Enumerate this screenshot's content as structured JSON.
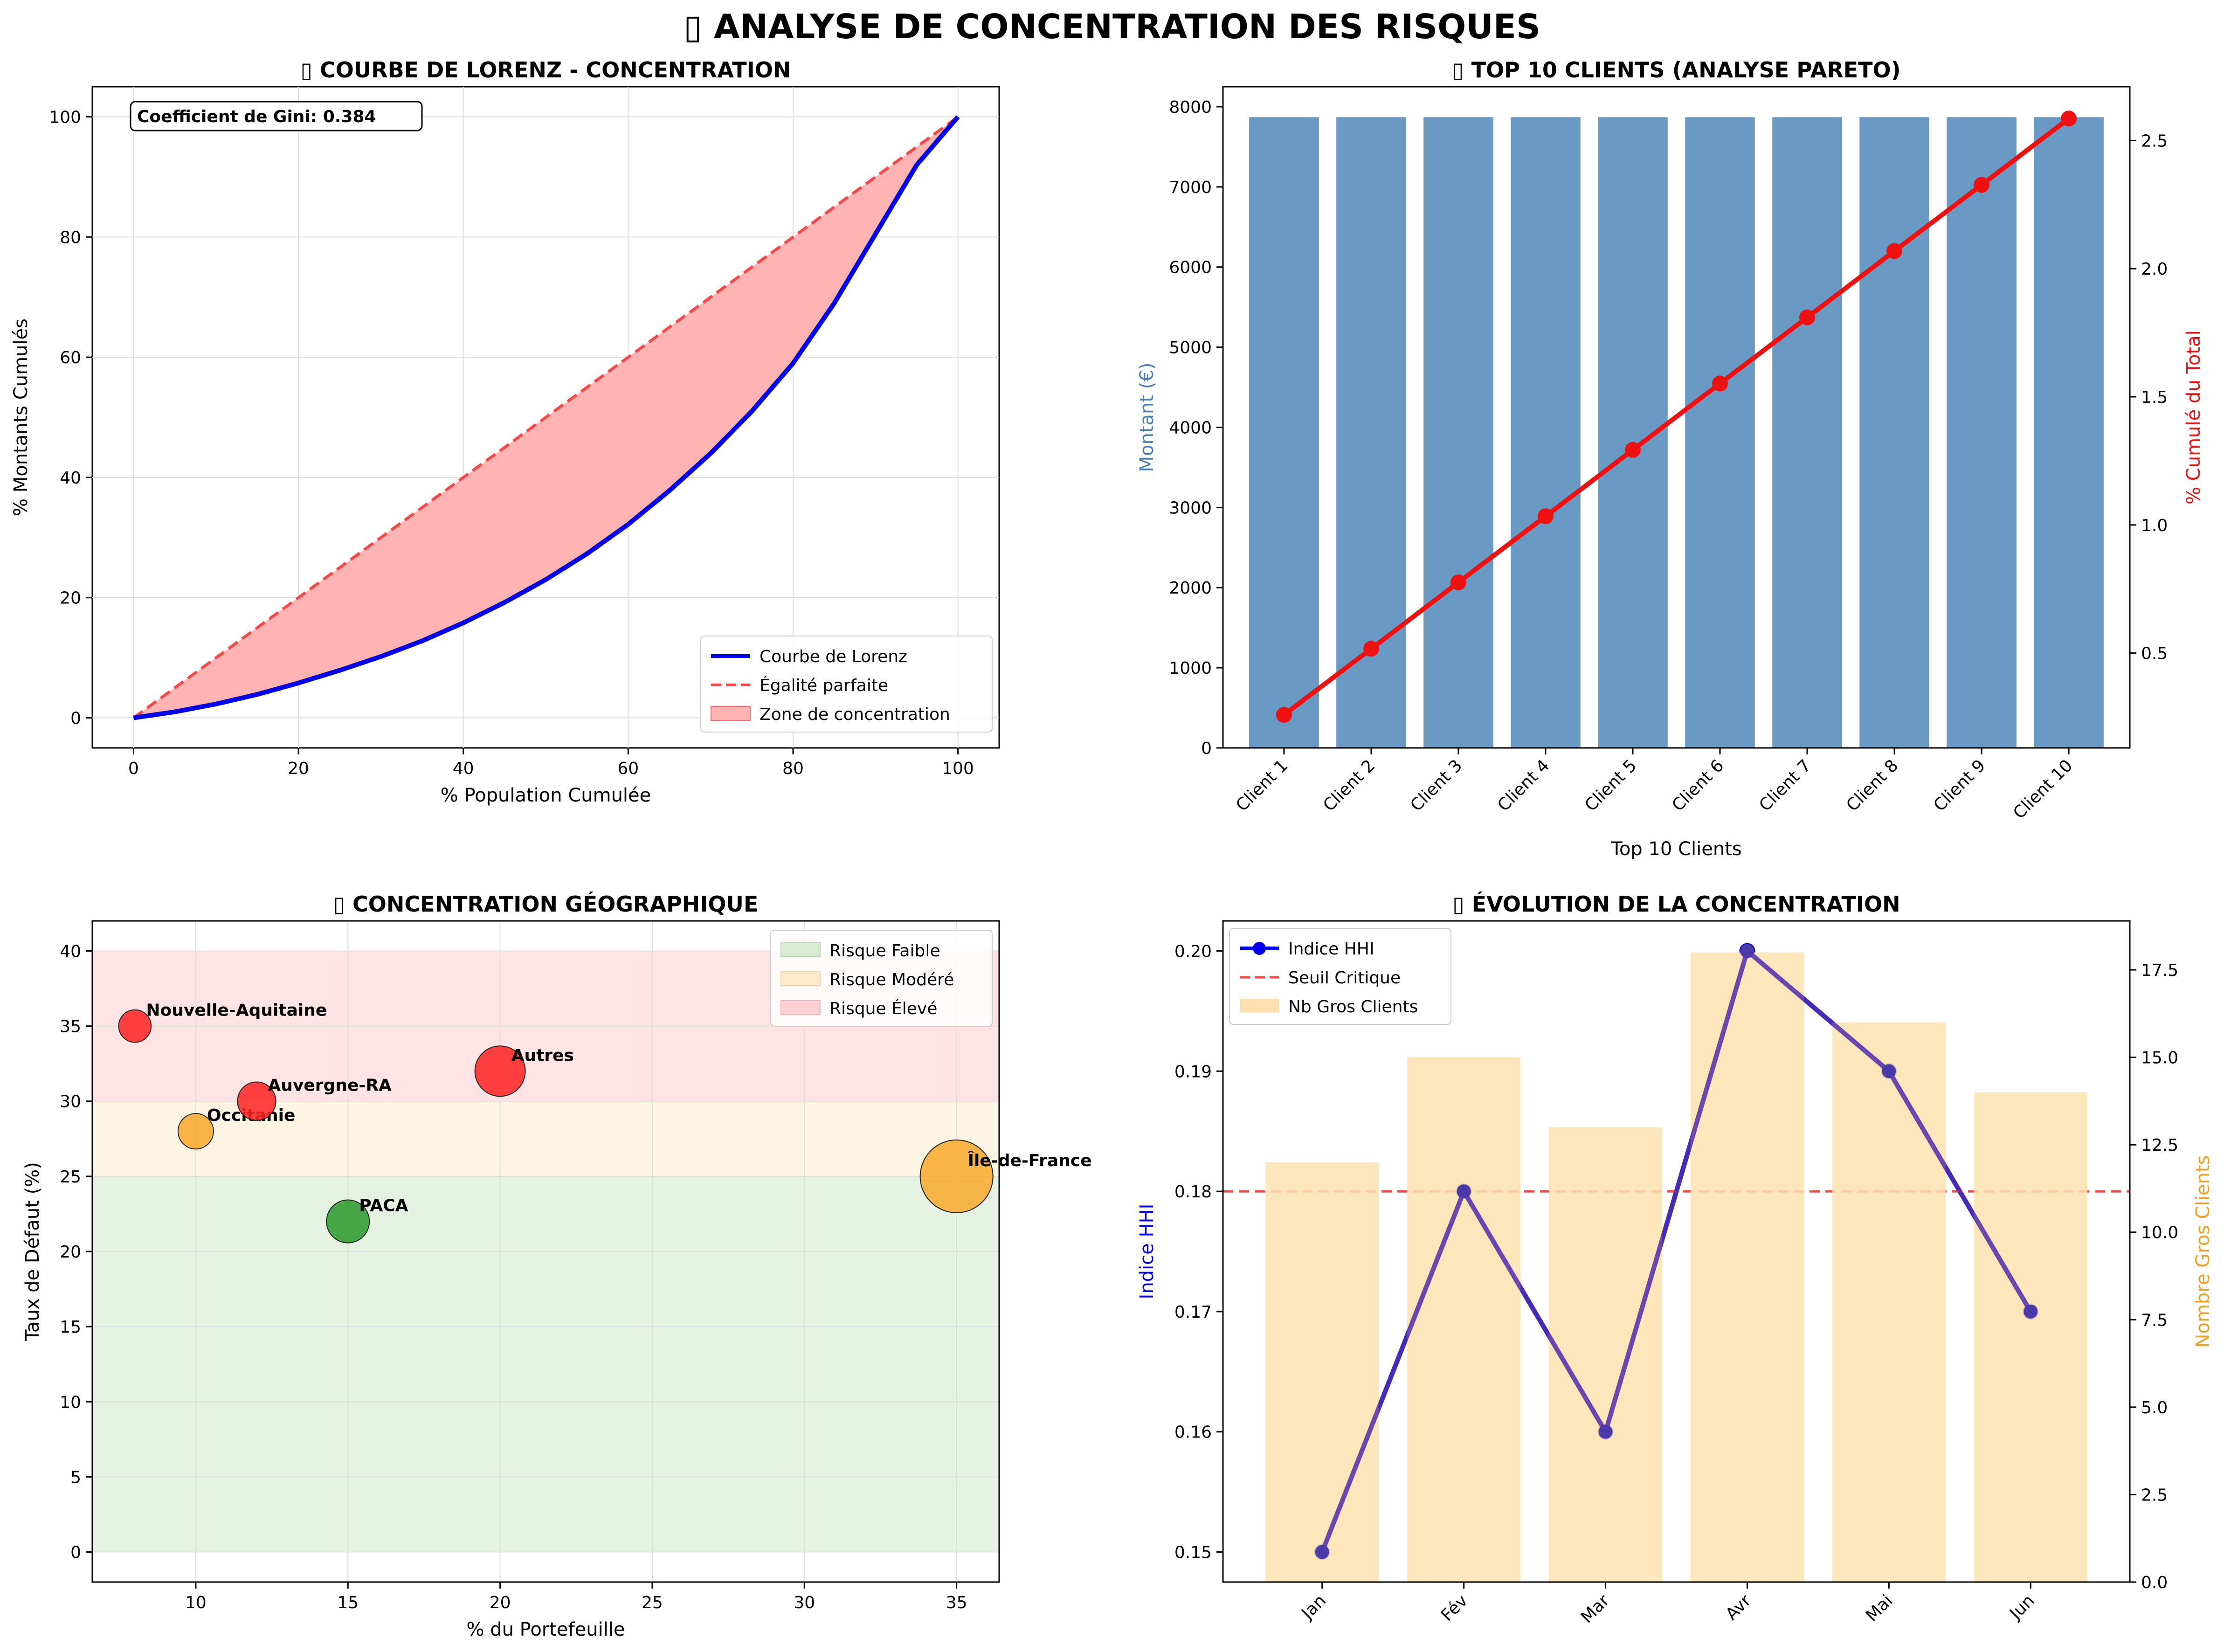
{
  "page": {
    "title": "▯ ANALYSE DE CONCENTRATION DES RISQUES"
  },
  "chart_data": [
    {
      "id": "lorenz",
      "type": "line",
      "title": "▯ COURBE DE LORENZ - CONCENTRATION",
      "xlabel": "% Population Cumulée",
      "ylabel": "% Montants Cumulés",
      "xlim": [
        -5,
        105
      ],
      "ylim": [
        -5,
        105
      ],
      "xticks": [
        0,
        20,
        40,
        60,
        80,
        100
      ],
      "yticks": [
        0,
        20,
        40,
        60,
        80,
        100
      ],
      "grid": true,
      "annotation": "Coefficient de Gini: 0.384",
      "legend_position": "lower right",
      "series": [
        {
          "name": "Courbe de Lorenz",
          "color": "#0000ee",
          "style": "solid",
          "x": [
            0,
            5,
            10,
            15,
            20,
            25,
            30,
            35,
            40,
            45,
            50,
            55,
            60,
            65,
            70,
            75,
            80,
            85,
            90,
            95,
            100
          ],
          "y": [
            0,
            1,
            2.3,
            3.9,
            5.8,
            7.9,
            10.2,
            12.8,
            15.8,
            19.2,
            23,
            27.3,
            32.2,
            37.8,
            44,
            51,
            59,
            69,
            80.5,
            92,
            100
          ]
        },
        {
          "name": "Égalité parfaite",
          "color": "#ff4444",
          "style": "dashed",
          "x": [
            0,
            100
          ],
          "y": [
            0,
            100
          ]
        }
      ],
      "fill_label": "Zone de concentration",
      "fill_color": "#ffb3b3"
    },
    {
      "id": "pareto",
      "type": "bar",
      "title": "▯ TOP 10 CLIENTS (ANALYSE PARETO)",
      "xlabel": "Top 10 Clients",
      "ylabel": "Montant (€)",
      "y2label": "% Cumulé du Total",
      "categories": [
        "Client 1",
        "Client 2",
        "Client 3",
        "Client 4",
        "Client 5",
        "Client 6",
        "Client 7",
        "Client 8",
        "Client 9",
        "Client 10"
      ],
      "values": [
        7870,
        7870,
        7870,
        7870,
        7870,
        7870,
        7870,
        7870,
        7870,
        7870
      ],
      "bar_color": "#6a9ac4",
      "ylim": [
        0,
        8250
      ],
      "yticks": [
        0,
        1000,
        2000,
        3000,
        4000,
        5000,
        6000,
        7000,
        8000
      ],
      "cumulative": {
        "color": "#ee1111",
        "values": [
          0.259,
          0.517,
          0.776,
          1.034,
          1.293,
          1.552,
          1.81,
          2.069,
          2.327,
          2.586
        ],
        "ylim": [
          0.13,
          2.71
        ],
        "yticks": [
          0.5,
          1.0,
          1.5,
          2.0,
          2.5
        ]
      }
    },
    {
      "id": "geo",
      "type": "scatter",
      "title": "▯ CONCENTRATION GÉOGRAPHIQUE",
      "xlabel": "% du Portefeuille",
      "ylabel": "Taux de Défaut (%)",
      "xlim": [
        6.6,
        36.4
      ],
      "ylim": [
        -2,
        42
      ],
      "xticks": [
        10,
        15,
        20,
        25,
        30,
        35
      ],
      "yticks": [
        0,
        5,
        10,
        15,
        20,
        25,
        30,
        35,
        40
      ],
      "grid": true,
      "legend_position": "upper right",
      "bands": [
        {
          "label": "Risque Faible",
          "from": 0,
          "to": 25,
          "color": "#e5f2e2"
        },
        {
          "label": "Risque Modéré",
          "from": 25,
          "to": 30,
          "color": "#fef4e4"
        },
        {
          "label": "Risque Élevé",
          "from": 30,
          "to": 40,
          "color": "#ffe3e5"
        }
      ],
      "points": [
        {
          "label": "Nouvelle-Aquitaine",
          "x": 8,
          "y": 35,
          "color": "#ff2222"
        },
        {
          "label": "Occitanie",
          "x": 10,
          "y": 28,
          "color": "#f9a82a"
        },
        {
          "label": "Auvergne-RA",
          "x": 12,
          "y": 30,
          "color": "#ff2222"
        },
        {
          "label": "PACA",
          "x": 15,
          "y": 22,
          "color": "#2a9a2a"
        },
        {
          "label": "Autres",
          "x": 20,
          "y": 32,
          "color": "#ff2222"
        },
        {
          "label": "Île-de-France",
          "x": 35,
          "y": 25,
          "color": "#f9a82a"
        }
      ]
    },
    {
      "id": "evolution",
      "type": "line",
      "title": "▯ ÉVOLUTION DE LA CONCENTRATION",
      "ylabel": "Indice HHI",
      "y2label": "Nombre Gros Clients",
      "categories": [
        "Jan",
        "Fév",
        "Mar",
        "Avr",
        "Mai",
        "Jun"
      ],
      "ylim": [
        0.1475,
        0.2025
      ],
      "yticks": [
        0.15,
        0.16,
        0.17,
        0.18,
        0.19,
        0.2
      ],
      "y2lim": [
        0,
        18.9
      ],
      "y2ticks": [
        0.0,
        2.5,
        5.0,
        7.5,
        10.0,
        12.5,
        15.0,
        17.5
      ],
      "legend_position": "upper left",
      "series": [
        {
          "name": "Indice HHI",
          "color": "#0000ee",
          "values": [
            0.15,
            0.18,
            0.16,
            0.2,
            0.19,
            0.17
          ]
        },
        {
          "name": "Seuil Critique",
          "color": "#ff4444",
          "value": 0.18
        },
        {
          "name": "Nb Gros Clients",
          "color": "#fde0b0",
          "values": [
            12,
            15,
            13,
            18,
            16,
            14
          ]
        }
      ]
    }
  ]
}
